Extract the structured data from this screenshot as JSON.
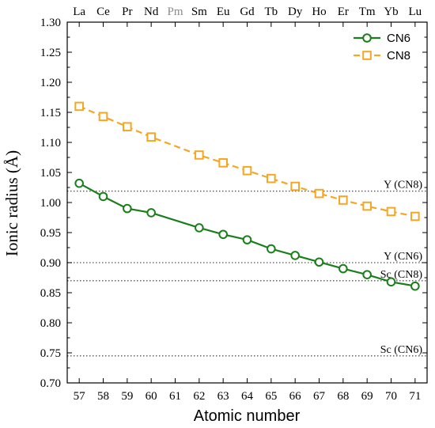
{
  "chart_data": {
    "type": "line",
    "xlabel": "Atomic number",
    "ylabel": "Ionic radius (Å)",
    "xlim": [
      56.5,
      71.5
    ],
    "ylim": [
      0.7,
      1.3
    ],
    "x_ticks": [
      57,
      58,
      59,
      60,
      61,
      62,
      63,
      64,
      65,
      66,
      67,
      68,
      69,
      70,
      71
    ],
    "y_ticks": [
      "0.70",
      "0.75",
      "0.80",
      "0.85",
      "0.90",
      "0.95",
      "1.00",
      "1.05",
      "1.10",
      "1.15",
      "1.20",
      "1.25",
      "1.30"
    ],
    "top_axis": {
      "ticks": [
        57,
        58,
        59,
        60,
        61,
        62,
        63,
        64,
        65,
        66,
        67,
        68,
        69,
        70,
        71
      ],
      "labels": [
        "La",
        "Ce",
        "Pr",
        "Nd",
        "Pm",
        "Sm",
        "Eu",
        "Gd",
        "Tb",
        "Dy",
        "Ho",
        "Er",
        "Tm",
        "Yb",
        "Lu"
      ],
      "muted": [
        "Pm"
      ]
    },
    "legend_position": "top-right",
    "series": [
      {
        "name": "CN6",
        "color": "#1a7f1a",
        "marker": "circle",
        "line_style": "solid",
        "x": [
          57,
          58,
          59,
          60,
          62,
          63,
          64,
          65,
          66,
          67,
          68,
          69,
          70,
          71
        ],
        "y": [
          1.032,
          1.01,
          0.99,
          0.983,
          0.958,
          0.947,
          0.938,
          0.923,
          0.912,
          0.901,
          0.89,
          0.88,
          0.868,
          0.861
        ]
      },
      {
        "name": "CN8",
        "color": "#f5a623",
        "marker": "square",
        "line_style": "dashed",
        "x": [
          57,
          58,
          59,
          60,
          62,
          63,
          64,
          65,
          66,
          67,
          68,
          69,
          70,
          71
        ],
        "y": [
          1.16,
          1.143,
          1.126,
          1.109,
          1.079,
          1.066,
          1.053,
          1.04,
          1.027,
          1.015,
          1.004,
          0.994,
          0.985,
          0.977
        ]
      }
    ],
    "reference_lines": [
      {
        "label": "Y (CN8)",
        "y": 1.019
      },
      {
        "label": "Y (CN6)",
        "y": 0.9
      },
      {
        "label": "Sc (CN8)",
        "y": 0.87
      },
      {
        "label": "Sc (CN6)",
        "y": 0.745
      }
    ]
  }
}
